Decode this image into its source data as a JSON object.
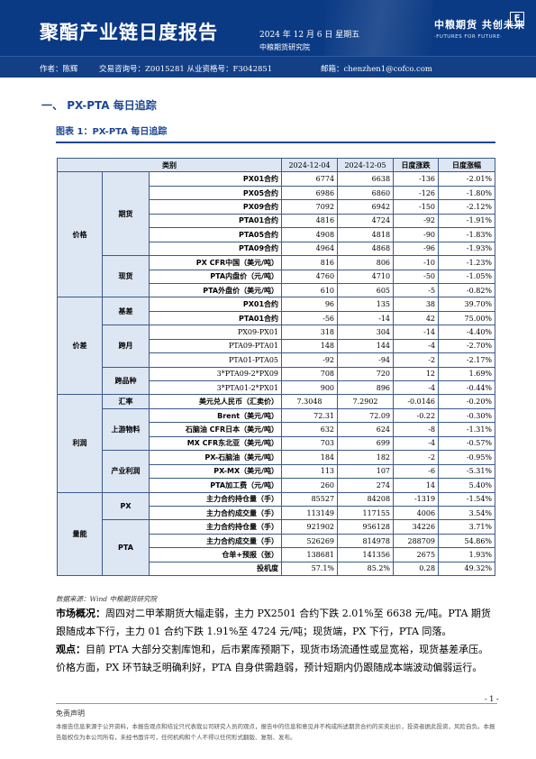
{
  "header": {
    "title": "聚酯产业链日度报告",
    "date": "2024 年 12 月 6 日 星期五",
    "institute": "中粮期货研究院",
    "logo_cn": "中粮期货 共创未来",
    "logo_en": "·FUTURES FOR FUTURE·",
    "logo_mark": "F"
  },
  "author": {
    "author_text": "作者：陈辉",
    "license_text": "交易咨询号：Z0015281 从业资格号：F3042851",
    "email_text": "邮箱：chenzhen1@cofco.com"
  },
  "section": {
    "number": "一、",
    "title": "PX-PTA 每日追踪"
  },
  "figure": {
    "title": "图表 1：PX-PTA 每日追踪"
  },
  "table": {
    "headers": [
      "类别",
      "2024-12-04",
      "2024-12-05",
      "日度涨跌",
      "日度涨幅"
    ],
    "groups": {
      "price": "价格",
      "futures": "期货",
      "spot": "现货",
      "spread": "价差",
      "basis": "基差",
      "calendar": "跨月",
      "cross": "跨品种",
      "profit": "利润",
      "fx": "汇率",
      "upstream": "上游物料",
      "industry": "产业利润",
      "capacity": "量能",
      "px": "PX",
      "pta": "PTA"
    },
    "rows": [
      [
        "PX01合约",
        "6774",
        "6638",
        "-136",
        "-2.01%"
      ],
      [
        "PX05合约",
        "6986",
        "6860",
        "-126",
        "-1.80%"
      ],
      [
        "PX09合约",
        "7092",
        "6942",
        "-150",
        "-2.12%"
      ],
      [
        "PTA01合约",
        "4816",
        "4724",
        "-92",
        "-1.91%"
      ],
      [
        "PTA05合约",
        "4908",
        "4818",
        "-90",
        "-1.83%"
      ],
      [
        "PTA09合约",
        "4964",
        "4868",
        "-96",
        "-1.93%"
      ],
      [
        "PX CFR中国（美元/吨）",
        "816",
        "806",
        "-10",
        "-1.23%"
      ],
      [
        "PTA内盘价（元/吨）",
        "4760",
        "4710",
        "-50",
        "-1.05%"
      ],
      [
        "PTA外盘价（美元/吨）",
        "610",
        "605",
        "-5",
        "-0.82%"
      ],
      [
        "PX01合约",
        "96",
        "135",
        "38",
        "39.70%"
      ],
      [
        "PTA01合约",
        "-56",
        "-14",
        "42",
        "75.00%"
      ],
      [
        "PX09-PX01",
        "318",
        "304",
        "-14",
        "-4.40%"
      ],
      [
        "PTA09-PTA01",
        "148",
        "144",
        "-4",
        "-2.70%"
      ],
      [
        "PTA01-PTA05",
        "-92",
        "-94",
        "-2",
        "-2.17%"
      ],
      [
        "3*PTA09-2*PX09",
        "708",
        "720",
        "12",
        "1.69%"
      ],
      [
        "3*PTA01-2*PX01",
        "900",
        "896",
        "-4",
        "-0.44%"
      ],
      [
        "美元兑人民币（汇卖价）",
        "7.3048",
        "7.2902",
        "-0.0146",
        "-0.20%"
      ],
      [
        "Brent（美元/吨）",
        "72.31",
        "72.09",
        "-0.22",
        "-0.30%"
      ],
      [
        "石脑油 CFR日本（美元/吨）",
        "632",
        "624",
        "-8",
        "-1.31%"
      ],
      [
        "MX CFR东北亚（美元/吨）",
        "703",
        "699",
        "-4",
        "-0.57%"
      ],
      [
        "PX-石脑油（美元/吨）",
        "184",
        "182",
        "-2",
        "-0.95%"
      ],
      [
        "PX-MX（美元/吨）",
        "113",
        "107",
        "-6",
        "-5.31%"
      ],
      [
        "PTA加工费（元/吨）",
        "260",
        "274",
        "14",
        "5.40%"
      ],
      [
        "主力合约持仓量（手）",
        "85527",
        "84208",
        "-1319",
        "-1.54%"
      ],
      [
        "主力合约成交量（手）",
        "113149",
        "117155",
        "4006",
        "3.54%"
      ],
      [
        "主力合约持仓量（手）",
        "921902",
        "956128",
        "34226",
        "3.71%"
      ],
      [
        "主力合约成交量（手）",
        "526269",
        "814978",
        "288709",
        "54.86%"
      ],
      [
        "仓单+预报（张）",
        "138681",
        "141356",
        "2675",
        "1.93%"
      ],
      [
        "投机度",
        "57.1%",
        "85.2%",
        "0.28",
        "49.32%"
      ]
    ]
  },
  "source": "数据来源：Wind 中粮期货研究院",
  "market": {
    "label": "市场概况：",
    "text": "周四对二甲苯期货大幅走弱，主力 PX2501 合约下跌 2.01%至 6638 元/吨。PTA 期货跟随成本下行，主力 01 合约下跌 1.91%至 4724 元/吨；现货端，PX 下行，PTA 同落。"
  },
  "view": {
    "label": "观点：",
    "text": "目前 PTA 大部分交割库饱和，后市累库预期下，现货市场流通性或显宽裕，现货基差承压。价格方面，PX 环节缺乏明确利好，PTA 自身供需趋弱，预计短期内仍跟随成本端波动偏弱运行。"
  },
  "page_number": "- 1 -",
  "disclaimer": {
    "title": "免责声明",
    "text": "本报告信息来源于公开资料，本报告观点和结论只代表我公司研究人员的观点，报告中的信息和意见并不构成所述期货合约的买卖出价，投资者据此投资，风险自负。本报告版权仅为本公司所有，未经书面许可，任何机构和个人不得以任何形式翻版、复制、发布。"
  }
}
